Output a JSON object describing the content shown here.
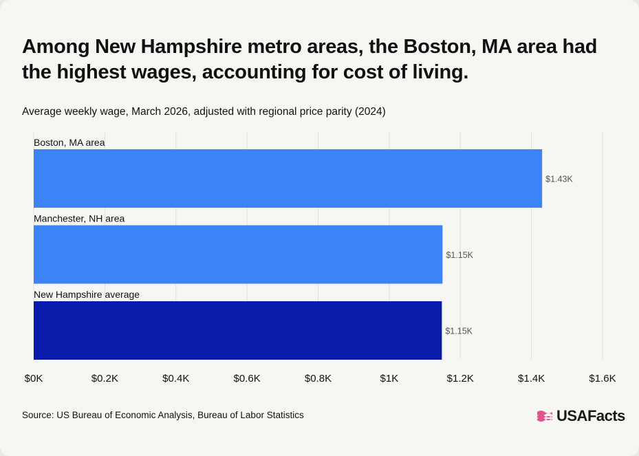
{
  "title": "Among New Hampshire metro areas, the Boston, MA area had the highest wages, accounting for cost of living.",
  "subtitle": "Average weekly wage, March 2026, adjusted with regional price parity (2024)",
  "source": "Source: US Bureau of Economic Analysis, Bureau of Labor Statistics",
  "logo": {
    "text": "USAFacts",
    "icon": "usafacts-flag-icon"
  },
  "colors": {
    "background": "#f6f6f2",
    "bar_metro": "#3c83f6",
    "bar_average": "#0a1aab",
    "logo_accent": "#e5538f"
  },
  "chart_data": {
    "type": "bar",
    "orientation": "horizontal",
    "categories": [
      "Boston, MA area",
      "Manchester, NH area",
      "New Hampshire average"
    ],
    "values": [
      1430,
      1150,
      1148
    ],
    "value_labels": [
      "$1.43K",
      "$1.15K",
      "$1.15K"
    ],
    "bar_colors": [
      "#3c83f6",
      "#3c83f6",
      "#0a1aab"
    ],
    "xlim": [
      0,
      1600
    ],
    "xticks": [
      0,
      200,
      400,
      600,
      800,
      1000,
      1200,
      1400,
      1600
    ],
    "xtick_labels": [
      "$0K",
      "$0.2K",
      "$0.4K",
      "$0.6K",
      "$0.8K",
      "$1K",
      "$1.2K",
      "$1.4K",
      "$1.6K"
    ],
    "grid": "vertical"
  }
}
